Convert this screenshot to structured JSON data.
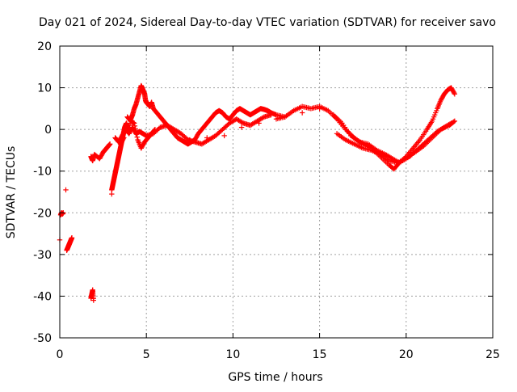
{
  "chart_data": {
    "type": "scatter",
    "title": "Day 021 of 2024, Sidereal Day-to-day VTEC variation (SDTVAR) for receiver savo",
    "xlabel": "GPS time / hours",
    "ylabel": "SDTVAR / TECUs",
    "xlim": [
      0,
      25
    ],
    "ylim": [
      -50,
      20
    ],
    "x_ticks": [
      0,
      5,
      10,
      15,
      20,
      25
    ],
    "y_ticks": [
      -50,
      -40,
      -30,
      -20,
      -10,
      0,
      10,
      20
    ],
    "x_tick_labels": [
      "0",
      "5",
      "10",
      "15",
      "20",
      "25"
    ],
    "y_tick_labels": [
      "-50",
      "-40",
      "-30",
      "-20",
      "-10",
      "0",
      "10",
      "20"
    ],
    "grid": true,
    "marker": "+",
    "color": "#ff0000",
    "series": [
      {
        "name": "SDTVAR",
        "x": [
          0.0,
          0.05,
          0.1,
          0.15,
          0.2,
          0.35,
          0.4,
          0.45,
          0.5,
          0.55,
          0.6,
          0.65,
          0.7,
          1.8,
          1.85,
          1.9,
          1.95,
          1.8,
          1.85,
          1.9,
          2.0,
          2.3,
          2.5,
          2.6,
          2.7,
          2.8,
          2.9,
          3.0,
          3.0,
          3.05,
          3.1,
          3.15,
          3.2,
          3.25,
          3.3,
          3.35,
          3.4,
          3.45,
          3.5,
          3.55,
          3.6,
          3.65,
          3.7,
          3.75,
          3.8,
          3.85,
          3.9,
          3.95,
          4.0,
          4.1,
          4.2,
          4.3,
          4.4,
          4.5,
          4.6,
          4.7,
          4.75,
          4.8,
          4.85,
          4.9,
          4.95,
          5.0,
          5.1,
          5.2,
          5.3,
          5.4,
          5.6,
          5.8,
          6.0,
          6.2,
          6.4,
          6.6,
          6.8,
          7.0,
          7.2,
          7.4,
          7.6,
          7.8,
          8.0,
          8.2,
          8.4,
          8.6,
          8.8,
          9.0,
          9.2,
          9.4,
          9.6,
          9.8,
          10.0,
          10.2,
          10.4,
          10.6,
          10.8,
          11.0,
          11.2,
          11.4,
          11.6,
          11.8,
          12.0,
          12.2,
          12.5,
          13.0,
          13.5,
          14.0,
          14.5,
          15.0,
          15.5,
          16.0,
          16.5,
          17.0,
          17.5,
          18.0,
          18.5,
          19.0,
          19.3,
          19.6,
          20.0,
          20.4,
          20.8,
          21.2,
          21.5,
          21.8,
          22.0,
          22.2,
          22.4,
          22.6,
          22.8,
          3.2,
          3.4,
          3.6,
          3.8,
          4.0,
          4.2,
          4.4,
          4.6,
          4.8,
          5.0,
          5.4,
          5.8,
          6.2,
          6.6,
          7.0,
          7.4,
          7.8,
          8.2,
          8.6,
          9.0,
          9.4,
          9.8,
          10.2,
          10.6,
          11.0,
          11.4,
          11.8,
          12.2,
          16.0,
          16.5,
          17.0,
          17.5,
          18.0,
          18.5,
          19.0,
          19.5,
          20.0,
          20.5,
          21.0,
          21.5,
          22.0,
          22.5,
          22.8,
          3.5,
          3.7,
          3.9,
          4.1,
          4.3,
          4.5,
          4.7,
          4.9,
          5.1,
          5.3,
          5.5,
          6.5,
          7.5,
          8.5,
          9.5,
          10.5,
          11.5,
          12.5,
          13.0,
          14.0,
          15.0,
          15.8,
          16.3,
          16.8,
          17.3,
          17.8,
          18.3,
          18.8,
          19.2,
          19.6,
          20.2,
          20.6,
          21.0,
          21.4,
          21.8,
          22.2,
          22.6
        ],
        "y": [
          -26.5,
          -20.5,
          -20.0,
          -20.3,
          -20.0,
          -14.5,
          -29.0,
          -28.5,
          -28.0,
          -27.5,
          -27.0,
          -26.5,
          -26.0,
          -40.5,
          -39.5,
          -38.5,
          -41.0,
          -6.5,
          -7.0,
          -7.5,
          -6.0,
          -7.0,
          -5.5,
          -5.0,
          -4.5,
          -4.0,
          -3.5,
          -15.5,
          -14.5,
          -13.5,
          -12.5,
          -11.5,
          -10.5,
          -9.5,
          -8.5,
          -7.5,
          -6.5,
          -5.5,
          -4.5,
          -3.5,
          -2.5,
          -1.5,
          -0.5,
          0.5,
          1.0,
          1.5,
          0.5,
          0.0,
          -0.5,
          2.5,
          3.5,
          5.0,
          6.0,
          7.5,
          9.0,
          10.5,
          10.0,
          9.5,
          9.0,
          8.5,
          7.0,
          6.5,
          6.0,
          5.5,
          6.5,
          5.0,
          4.0,
          3.0,
          2.0,
          1.0,
          0.0,
          -1.0,
          -2.0,
          -2.5,
          -3.0,
          -3.5,
          -3.0,
          -2.5,
          -1.0,
          0.0,
          1.0,
          2.0,
          3.0,
          4.0,
          4.5,
          4.0,
          3.0,
          2.5,
          3.5,
          4.5,
          5.0,
          4.5,
          4.0,
          3.5,
          4.0,
          4.5,
          5.0,
          4.8,
          4.5,
          4.0,
          3.5,
          3.0,
          4.5,
          5.5,
          5.0,
          5.5,
          4.5,
          2.5,
          0.0,
          -2.0,
          -3.5,
          -4.5,
          -6.5,
          -8.5,
          -9.5,
          -8.0,
          -6.5,
          -4.5,
          -2.5,
          0.0,
          2.0,
          5.0,
          7.0,
          8.5,
          9.5,
          10.0,
          8.5,
          -2.0,
          -3.0,
          -1.5,
          0.0,
          -1.0,
          0.5,
          -1.0,
          -0.5,
          -1.0,
          -1.5,
          -1.0,
          0.5,
          1.0,
          0.0,
          -1.0,
          -2.5,
          -3.0,
          -3.5,
          -2.5,
          -1.5,
          0.0,
          1.5,
          2.5,
          1.5,
          1.0,
          2.0,
          3.0,
          3.5,
          -1.0,
          -2.5,
          -3.5,
          -4.5,
          -5.0,
          -6.0,
          -7.5,
          -8.0,
          -7.0,
          -5.5,
          -4.0,
          -2.0,
          0.0,
          1.0,
          2.0,
          -3.5,
          -2.0,
          3.0,
          2.0,
          1.5,
          -2.5,
          -4.5,
          -3.0,
          -2.0,
          -1.0,
          0.0,
          -0.5,
          -2.5,
          -2.0,
          -1.5,
          0.5,
          1.5,
          2.5,
          3.0,
          4.0,
          5.0,
          3.5,
          1.5,
          -1.5,
          -3.0,
          -3.5,
          -5.0,
          -6.0,
          -7.0,
          -8.0,
          -6.5,
          -5.0,
          -3.5,
          -2.0,
          -0.5,
          0.5,
          1.5
        ]
      }
    ]
  }
}
